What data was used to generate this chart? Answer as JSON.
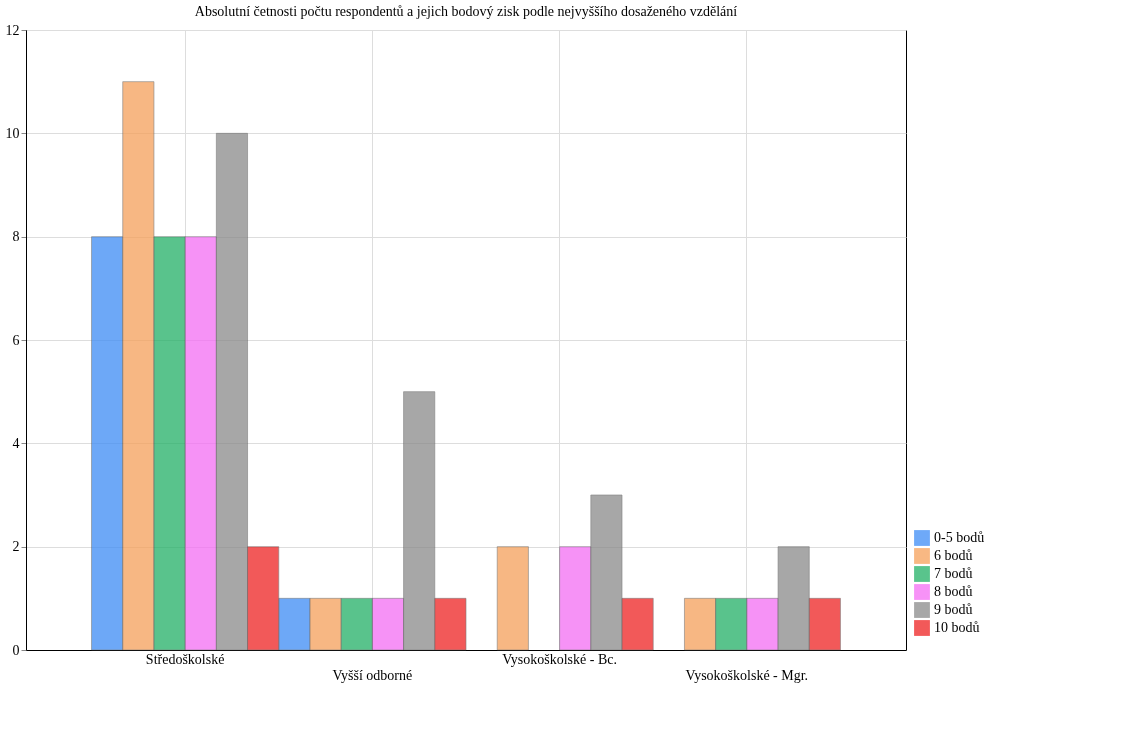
{
  "chart_data": {
    "type": "bar",
    "title": "Absolutní četnosti počtu respondentů a jejich bodový zisk podle nejvyššího dosaženého vzdělání",
    "categories": [
      "Středoškolské",
      "Vyšší odborné",
      "Vysokoškolské - Bc.",
      "Vysokoškolské - Mgr."
    ],
    "series": [
      {
        "name": "0-5 bodů",
        "color": "#3d8cf5",
        "values": [
          8,
          1,
          null,
          null
        ]
      },
      {
        "name": "6 bodů",
        "color": "#f5a05a",
        "values": [
          11,
          1,
          2,
          1
        ]
      },
      {
        "name": "7 bodů",
        "color": "#22b066",
        "values": [
          8,
          1,
          null,
          1
        ]
      },
      {
        "name": "8 bodů",
        "color": "#f46ef4",
        "values": [
          8,
          1,
          2,
          1
        ]
      },
      {
        "name": "9 bodů",
        "color": "#8a8a8a",
        "values": [
          10,
          5,
          3,
          2
        ]
      },
      {
        "name": "10 bodů",
        "color": "#ee2222",
        "values": [
          2,
          1,
          1,
          1
        ]
      }
    ],
    "ylim": [
      0,
      12
    ],
    "yticks": [
      0,
      2,
      4,
      6,
      8,
      10,
      12
    ],
    "grid": true,
    "legend": "bottom right"
  }
}
